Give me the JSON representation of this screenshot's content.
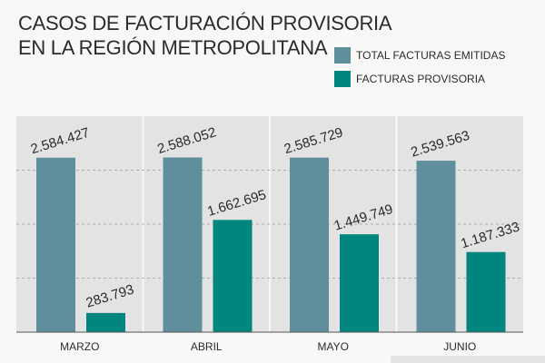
{
  "title_lines": [
    "CASOS DE FACTURACIÓN PROVISORIA",
    "EN LA REGIÓN METROPOLITANA"
  ],
  "legend": [
    {
      "label": "TOTAL FACTURAS EMITIDAS",
      "color": "#5f8e9c"
    },
    {
      "label": "FACTURAS PROVISORIA",
      "color": "#00857f"
    }
  ],
  "chart_data": {
    "type": "bar",
    "categories": [
      "MARZO",
      "ABRIL",
      "MAYO",
      "JUNIO"
    ],
    "series": [
      {
        "name": "TOTAL FACTURAS EMITIDAS",
        "color": "#5f8e9c",
        "values": [
          2584427,
          2588052,
          2585729,
          2539563
        ],
        "labels": [
          "2.584.427",
          "2.588.052",
          "2.585.729",
          "2.539.563"
        ]
      },
      {
        "name": "FACTURAS PROVISORIA",
        "color": "#00857f",
        "values": [
          283793,
          1662695,
          1449749,
          1187333
        ],
        "labels": [
          "283.793",
          "1.662.695",
          "1.449.749",
          "1.187.333"
        ]
      }
    ],
    "ylim": [
      0,
      3200000
    ],
    "grid": true
  }
}
